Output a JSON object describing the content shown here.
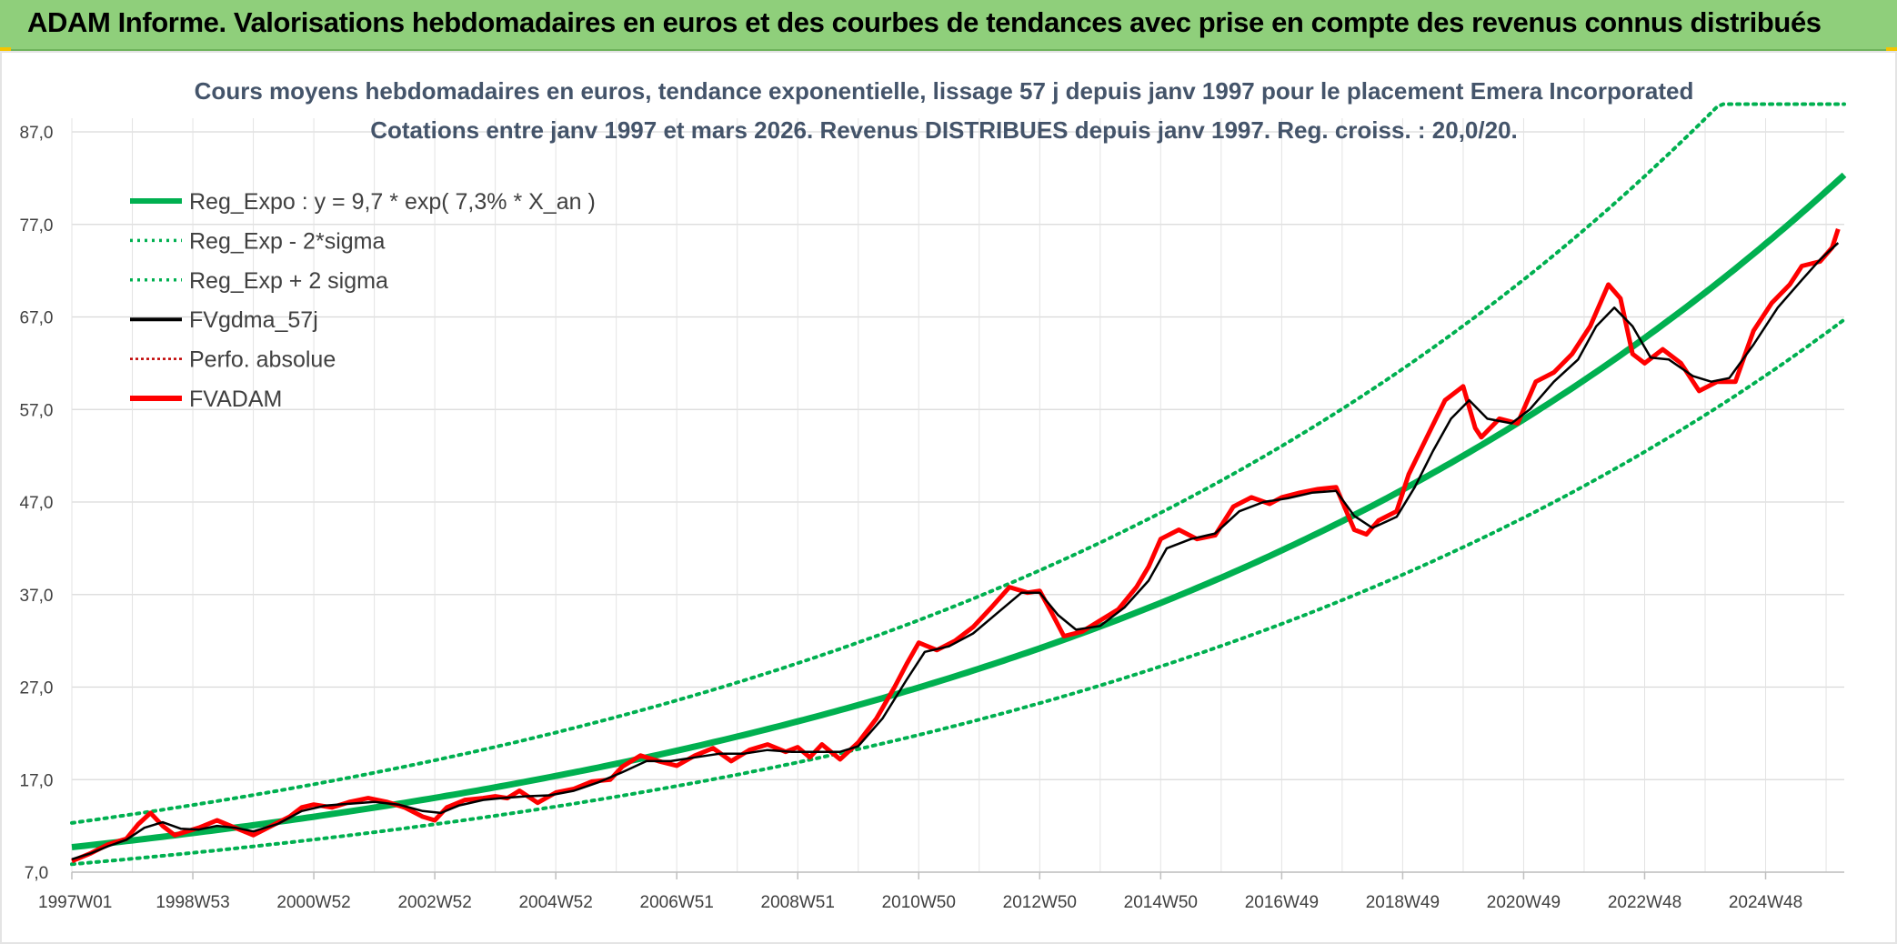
{
  "header": {
    "title": "ADAM Informe. Valorisations hebdomadaires en euros et des courbes de tendances avec prise en compte des revenus connus distribués"
  },
  "colors": {
    "banner": "#8fcf7b",
    "reg_expo": "#00b050",
    "sigma": "#00b050",
    "fvgdma": "#000000",
    "perfo": "#c00000",
    "fvadam": "#ff0000",
    "title": "#44546a"
  },
  "chart_data": {
    "type": "line",
    "title": "Cours moyens hebdomadaires en euros, tendance exponentielle, lissage 57 j depuis janv 1997 pour le placement Emera Incorporated",
    "subtitle": "Cotations entre janv 1997 et mars 2026. Revenus DISTRIBUES depuis janv 1997. Reg. croiss. : 20,0/20.",
    "xlabel": "",
    "ylabel": "",
    "ylim": [
      7,
      90
    ],
    "xlim": [
      1997.0,
      2026.3
    ],
    "y_ticks": [
      "7,0",
      "17,0",
      "27,0",
      "37,0",
      "47,0",
      "57,0",
      "67,0",
      "77,0",
      "87,0"
    ],
    "x_ticks": [
      {
        "label": "1997W01",
        "year": 1997.0
      },
      {
        "label": "1998W53",
        "year": 1999.0
      },
      {
        "label": "2000W52",
        "year": 2001.0
      },
      {
        "label": "2002W52",
        "year": 2003.0
      },
      {
        "label": "2004W52",
        "year": 2005.0
      },
      {
        "label": "2006W51",
        "year": 2007.0
      },
      {
        "label": "2008W51",
        "year": 2009.0
      },
      {
        "label": "2010W50",
        "year": 2011.0
      },
      {
        "label": "2012W50",
        "year": 2013.0
      },
      {
        "label": "2014W50",
        "year": 2015.0
      },
      {
        "label": "2016W49",
        "year": 2017.0
      },
      {
        "label": "2018W49",
        "year": 2019.0
      },
      {
        "label": "2020W49",
        "year": 2021.0
      },
      {
        "label": "2022W48",
        "year": 2023.0
      },
      {
        "label": "2024W48",
        "year": 2025.0
      }
    ],
    "legend": {
      "position": "top-left",
      "entries": [
        {
          "key": "reg_expo",
          "label": "Reg_Expo : y = 9,7 * exp( 7,3% *  X_an )",
          "style": "solid-thick"
        },
        {
          "key": "reg_minus",
          "label": "Reg_Exp - 2*sigma",
          "style": "dotted"
        },
        {
          "key": "reg_plus",
          "label": "Reg_Exp + 2 sigma",
          "style": "dotted"
        },
        {
          "key": "fvgdma",
          "label": "FVgdma_57j",
          "style": "solid"
        },
        {
          "key": "perfo",
          "label": "Perfo. absolue",
          "style": "dotted"
        },
        {
          "key": "fvadam",
          "label": "FVADAM",
          "style": "solid-thick"
        }
      ]
    },
    "regression": {
      "a": 9.7,
      "b": 0.073,
      "sigma_factor_plus": 1.27,
      "sigma_factor_minus": 0.81,
      "cap": 90
    },
    "series": [
      {
        "name": "FVADAM",
        "x": [
          1997.0,
          1997.3,
          1997.6,
          1997.9,
          1998.1,
          1998.3,
          1998.5,
          1998.7,
          1998.9,
          1999.1,
          1999.4,
          1999.7,
          2000.0,
          2000.3,
          2000.6,
          2000.8,
          2001.0,
          2001.3,
          2001.6,
          2001.9,
          2002.2,
          2002.5,
          2002.8,
          2003.0,
          2003.2,
          2003.5,
          2003.8,
          2004.0,
          2004.2,
          2004.4,
          2004.7,
          2005.0,
          2005.3,
          2005.6,
          2005.9,
          2006.1,
          2006.4,
          2006.7,
          2007.0,
          2007.3,
          2007.6,
          2007.9,
          2008.2,
          2008.5,
          2008.8,
          2009.0,
          2009.2,
          2009.4,
          2009.7,
          2010.0,
          2010.3,
          2010.6,
          2010.8,
          2011.0,
          2011.3,
          2011.6,
          2011.9,
          2012.2,
          2012.5,
          2012.8,
          2013.0,
          2013.2,
          2013.4,
          2013.7,
          2014.0,
          2014.3,
          2014.6,
          2014.8,
          2015.0,
          2015.3,
          2015.6,
          2015.9,
          2016.2,
          2016.5,
          2016.8,
          2017.0,
          2017.3,
          2017.6,
          2017.9,
          2018.2,
          2018.4,
          2018.6,
          2018.9,
          2019.1,
          2019.4,
          2019.7,
          2020.0,
          2020.2,
          2020.3,
          2020.6,
          2020.9,
          2021.2,
          2021.5,
          2021.8,
          2022.1,
          2022.4,
          2022.6,
          2022.8,
          2023.0,
          2023.3,
          2023.6,
          2023.9,
          2024.2,
          2024.5,
          2024.8,
          2025.1,
          2025.4,
          2025.6,
          2025.9,
          2026.1,
          2026.2
        ],
        "values": [
          8.2,
          9.0,
          10.0,
          10.6,
          12.2,
          13.4,
          12.0,
          11.0,
          11.4,
          11.8,
          12.6,
          11.8,
          11.0,
          12.0,
          13.0,
          14.0,
          14.3,
          14.0,
          14.6,
          15.0,
          14.6,
          14.0,
          13.0,
          12.6,
          14.0,
          14.8,
          15.0,
          15.2,
          15.0,
          15.8,
          14.5,
          15.6,
          16.0,
          16.8,
          17.0,
          18.4,
          19.6,
          19.0,
          18.5,
          19.6,
          20.4,
          19.0,
          20.2,
          20.8,
          20.0,
          20.5,
          19.4,
          20.8,
          19.2,
          21.0,
          23.6,
          27.0,
          29.5,
          31.8,
          31.0,
          32.0,
          33.5,
          35.6,
          37.8,
          37.2,
          37.4,
          35.0,
          32.5,
          33.0,
          34.2,
          35.4,
          37.8,
          40.0,
          43.0,
          44.0,
          43.0,
          43.4,
          46.5,
          47.5,
          46.8,
          47.5,
          48.0,
          48.4,
          48.6,
          44.0,
          43.5,
          45.0,
          46.0,
          50.0,
          54.0,
          58.0,
          59.5,
          55.0,
          54.0,
          56.0,
          55.5,
          60.0,
          61.0,
          63.0,
          66.0,
          70.5,
          69.0,
          63.0,
          62.0,
          63.5,
          62.0,
          59.0,
          60.0,
          60.0,
          65.5,
          68.5,
          70.5,
          72.5,
          73.0,
          74.5,
          76.5
        ]
      },
      {
        "name": "FVgdma_57j",
        "x": [
          1997.0,
          1997.3,
          1997.6,
          1997.9,
          1998.2,
          1998.5,
          1998.8,
          1999.1,
          1999.4,
          1999.7,
          2000.0,
          2000.4,
          2000.8,
          2001.2,
          2001.6,
          2002.0,
          2002.4,
          2002.8,
          2003.1,
          2003.4,
          2003.8,
          2004.1,
          2004.5,
          2004.9,
          2005.3,
          2005.7,
          2006.1,
          2006.5,
          2006.9,
          2007.3,
          2007.7,
          2008.1,
          2008.5,
          2008.9,
          2009.3,
          2009.7,
          2010.0,
          2010.4,
          2010.8,
          2011.1,
          2011.5,
          2011.9,
          2012.3,
          2012.7,
          2013.0,
          2013.3,
          2013.6,
          2014.0,
          2014.4,
          2014.8,
          2015.1,
          2015.5,
          2015.9,
          2016.3,
          2016.7,
          2017.1,
          2017.5,
          2017.9,
          2018.2,
          2018.5,
          2018.9,
          2019.2,
          2019.5,
          2019.8,
          2020.1,
          2020.4,
          2020.8,
          2021.1,
          2021.5,
          2021.9,
          2022.2,
          2022.5,
          2022.8,
          2023.1,
          2023.4,
          2023.8,
          2024.1,
          2024.4,
          2024.8,
          2025.2,
          2025.6,
          2025.9,
          2026.2
        ],
        "values": [
          8.4,
          9.0,
          9.8,
          10.5,
          11.8,
          12.4,
          11.7,
          11.6,
          12.0,
          11.8,
          11.4,
          12.2,
          13.6,
          14.2,
          14.4,
          14.6,
          14.3,
          13.6,
          13.4,
          14.2,
          14.8,
          15.0,
          15.2,
          15.3,
          15.8,
          16.7,
          17.8,
          19.0,
          19.0,
          19.4,
          19.8,
          19.8,
          20.2,
          20.0,
          20.0,
          20.0,
          20.6,
          23.6,
          27.8,
          30.8,
          31.4,
          32.8,
          35.0,
          37.2,
          37.2,
          34.8,
          33.2,
          33.6,
          35.6,
          38.5,
          42.0,
          43.0,
          43.6,
          46.0,
          47.0,
          47.4,
          48.0,
          48.2,
          45.5,
          44.2,
          45.4,
          48.6,
          52.5,
          56.0,
          58.0,
          56.0,
          55.5,
          57.0,
          60.0,
          62.4,
          66.0,
          68.0,
          66.0,
          62.6,
          62.4,
          60.6,
          60.0,
          60.4,
          64.0,
          68.0,
          71.0,
          73.2,
          75.0
        ]
      }
    ]
  }
}
